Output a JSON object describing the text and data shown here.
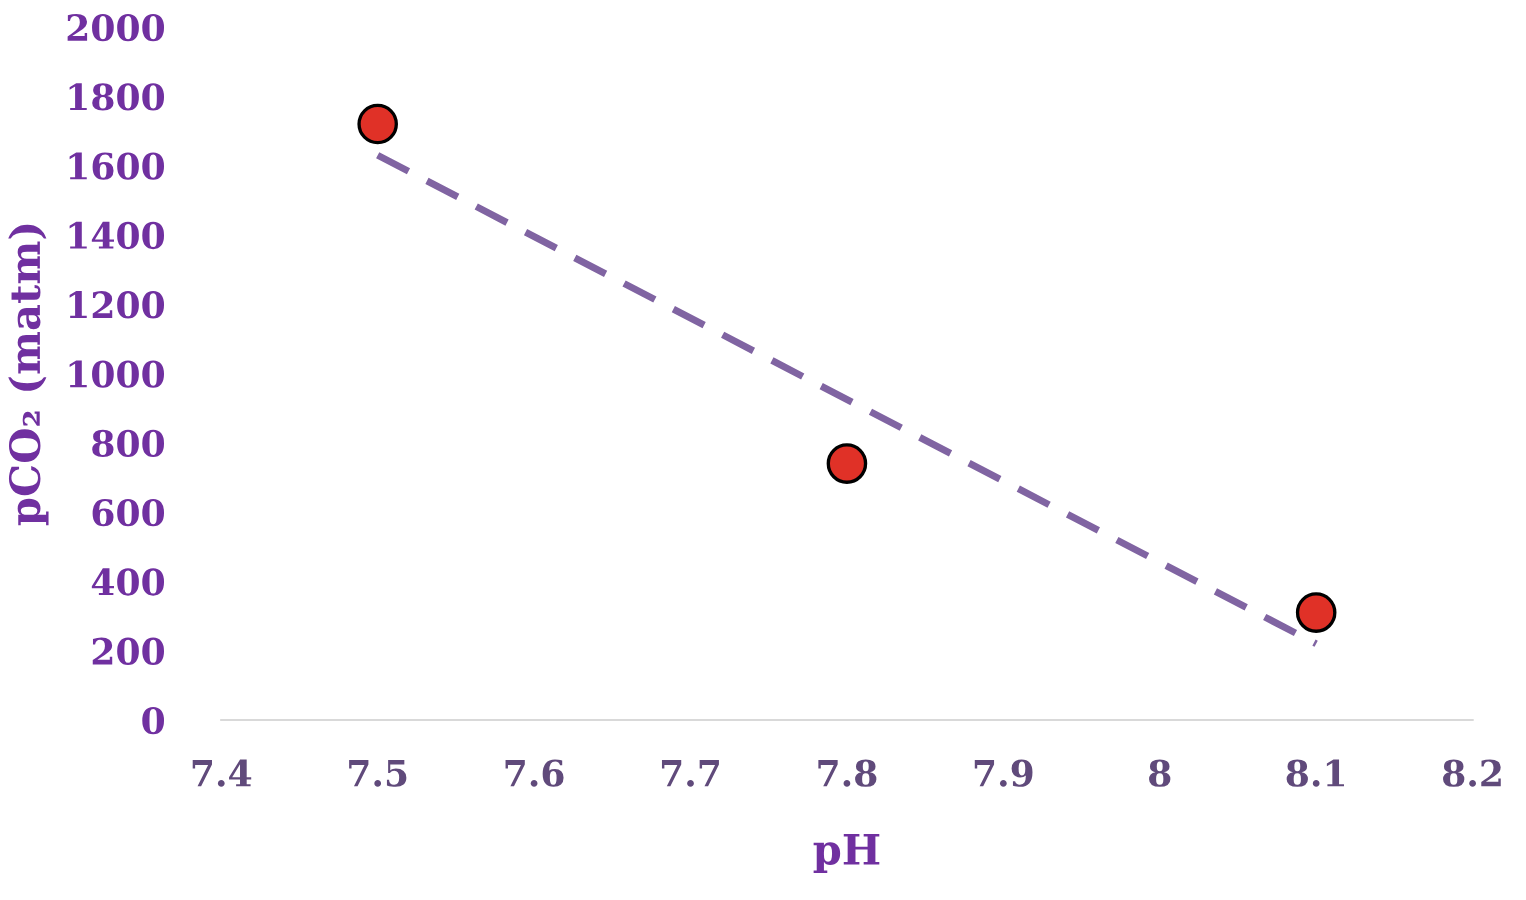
{
  "chart_data": {
    "type": "scatter",
    "xlabel": "pH",
    "ylabel": "pCO₂ (matm)",
    "xlim": [
      7.4,
      8.2
    ],
    "xticks": [
      7.4,
      7.5,
      7.6,
      7.7,
      7.8,
      7.9,
      8,
      8.1,
      8.2
    ],
    "ylim": [
      0,
      2000
    ],
    "yticks": [
      0,
      200,
      400,
      600,
      800,
      1000,
      1200,
      1400,
      1600,
      1800,
      2000
    ],
    "grid": false,
    "legend": false,
    "series": [
      {
        "type": "line",
        "color": "#8064a2",
        "line_style": "dashed",
        "marker": "none",
        "x": [
          7.5,
          8.1
        ],
        "values": [
          1630,
          220
        ]
      },
      {
        "color": "#e03127",
        "marker": "circle",
        "x": [
          7.5,
          7.8,
          8.1
        ],
        "values": [
          1720,
          740,
          310
        ]
      }
    ]
  }
}
